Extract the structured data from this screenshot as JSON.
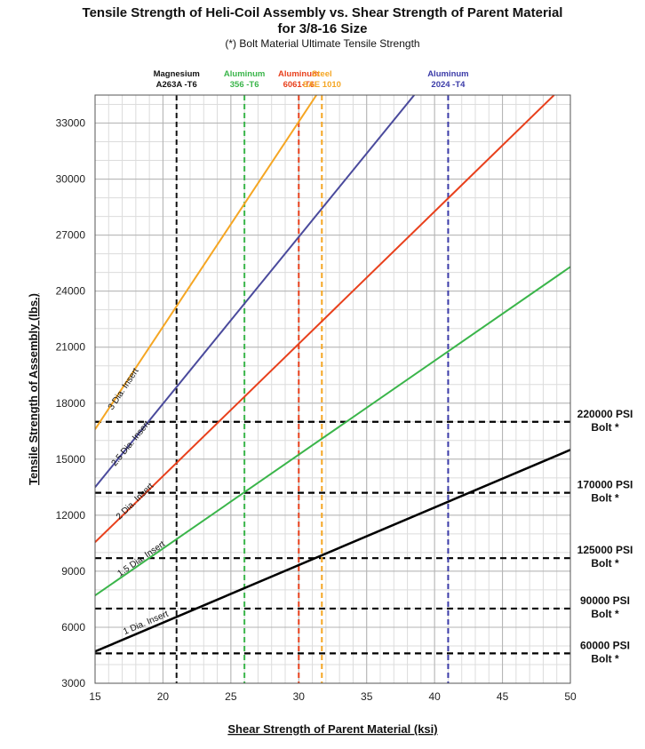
{
  "chart_data": {
    "type": "line",
    "title": "Tensile Strength of Heli-Coil Assembly vs. Shear Strength of Parent Material",
    "subtitle": "for 3/8-16 Size",
    "note": "(*) Bolt Material Ultimate Tensile Strength",
    "xlabel": "Shear Strength of Parent Material (ksi)",
    "ylabel": "Tensile Strength of Assembly (lbs.)",
    "xlim": [
      15,
      50
    ],
    "ylim": [
      3000,
      34500
    ],
    "xticks": [
      "15",
      "20",
      "25",
      "30",
      "35",
      "40",
      "45",
      "50"
    ],
    "yticks": [
      "3000",
      "6000",
      "9000",
      "12000",
      "15000",
      "18000",
      "21000",
      "24000",
      "27000",
      "30000",
      "33000"
    ],
    "xtick_values": [
      15,
      20,
      25,
      30,
      35,
      40,
      45,
      50
    ],
    "ytick_values": [
      3000,
      6000,
      9000,
      12000,
      15000,
      18000,
      21000,
      24000,
      27000,
      30000,
      33000
    ],
    "series": [
      {
        "name": "1 Dia. Insert",
        "color": "#000000",
        "x": [
          15,
          50
        ],
        "y": [
          4700,
          15500
        ]
      },
      {
        "name": "1.5 Dia. Insert",
        "color": "#3ab54a",
        "x": [
          15,
          50
        ],
        "y": [
          7700,
          25300
        ]
      },
      {
        "name": "2 Dia. Insert",
        "color": "#e8401c",
        "x": [
          15,
          48.8
        ],
        "y": [
          10550,
          34500
        ]
      },
      {
        "name": "2.5 Dia. Insert",
        "color": "#4a4a9c",
        "x": [
          15,
          38.5
        ],
        "y": [
          13500,
          34500
        ]
      },
      {
        "name": "3 Dia. Insert",
        "color": "#f5a623",
        "x": [
          15,
          31.3
        ],
        "y": [
          16600,
          34500
        ]
      }
    ],
    "vertical_refs": [
      {
        "x": 21,
        "line1": "Magnesium",
        "line2": "A263A -T6",
        "color": "#111111",
        "label_color": "#111111"
      },
      {
        "x": 26,
        "line1": "Aluminum",
        "line2": "356 -T6",
        "color": "#3ab54a",
        "label_color": "#3ab54a"
      },
      {
        "x": 30,
        "line1": "Aluminum",
        "line2": "6061-T6",
        "color": "#e8401c",
        "label_color": "#e8401c"
      },
      {
        "x": 31.7,
        "line1": "Steel",
        "line2": "SAE 1010",
        "color": "#f5a623",
        "label_color": "#f5a623"
      },
      {
        "x": 41,
        "line1": "Aluminum",
        "line2": "2024 -T4",
        "color": "#3b3ba8",
        "label_color": "#3b3ba8"
      }
    ],
    "horizontal_refs": [
      {
        "y": 17000,
        "line1": "220000 PSI",
        "line2": "Bolt *"
      },
      {
        "y": 13200,
        "line1": "170000 PSI",
        "line2": "Bolt *"
      },
      {
        "y": 9700,
        "line1": "125000 PSI",
        "line2": "Bolt *"
      },
      {
        "y": 7000,
        "line1": "90000 PSI",
        "line2": "Bolt *"
      },
      {
        "y": 4600,
        "line1": "60000 PSI",
        "line2": "Bolt *"
      }
    ]
  }
}
